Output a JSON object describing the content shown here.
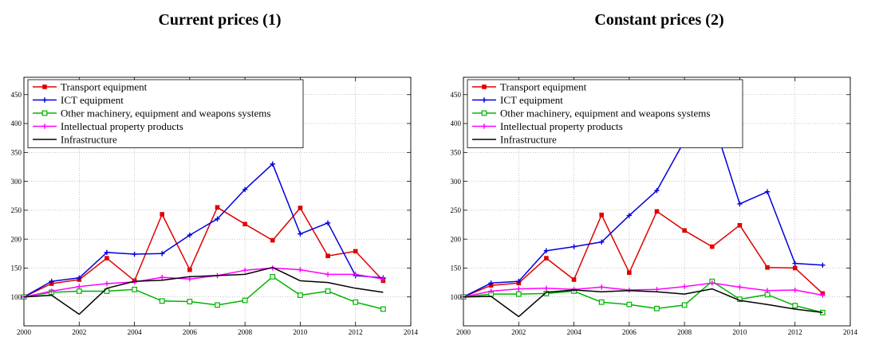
{
  "chart_data": [
    {
      "type": "line",
      "title": "Current prices (1)",
      "xlabel": "",
      "ylabel": "",
      "xlim": [
        2000,
        2014
      ],
      "ylim": [
        50,
        480
      ],
      "xticks": [
        2000,
        2002,
        2004,
        2006,
        2008,
        2010,
        2012,
        2014
      ],
      "yticks": [
        100,
        150,
        200,
        250,
        300,
        350,
        400,
        450
      ],
      "grid": true,
      "legend_position": "top-left",
      "x": [
        2000,
        2001,
        2002,
        2003,
        2004,
        2005,
        2006,
        2007,
        2008,
        2009,
        2010,
        2011,
        2012,
        2013
      ],
      "series": [
        {
          "name": "Transport equipment",
          "color": "#e00000",
          "marker": "square",
          "values": [
            100,
            123,
            130,
            167,
            128,
            243,
            147,
            255,
            226,
            198,
            254,
            171,
            179,
            128
          ]
        },
        {
          "name": "ICT equipment",
          "color": "#0000e0",
          "marker": "plus",
          "values": [
            100,
            127,
            133,
            177,
            174,
            175,
            207,
            235,
            286,
            330,
            209,
            228,
            137,
            133
          ]
        },
        {
          "name": "Other machinery, equipment and weapons systems",
          "color": "#00b400",
          "marker": "open-square",
          "values": [
            100,
            108,
            110,
            110,
            113,
            93,
            92,
            86,
            94,
            135,
            103,
            110,
            91,
            79
          ]
        },
        {
          "name": "Intellectual property products",
          "color": "#ff00ff",
          "marker": "plus",
          "values": [
            100,
            110,
            118,
            123,
            126,
            134,
            131,
            137,
            146,
            150,
            147,
            139,
            139,
            131
          ]
        },
        {
          "name": "Infrastructure",
          "color": "#000000",
          "marker": "none",
          "values": [
            100,
            103,
            70,
            115,
            127,
            129,
            135,
            137,
            139,
            151,
            128,
            125,
            115,
            108
          ]
        }
      ]
    },
    {
      "type": "line",
      "title": "Constant prices (2)",
      "xlabel": "",
      "ylabel": "",
      "xlim": [
        2000,
        2014
      ],
      "ylim": [
        50,
        480
      ],
      "xticks": [
        2000,
        2002,
        2004,
        2006,
        2008,
        2010,
        2012,
        2014
      ],
      "yticks": [
        100,
        150,
        200,
        250,
        300,
        350,
        400,
        450
      ],
      "grid": true,
      "legend_position": "top-left",
      "x": [
        2000,
        2001,
        2002,
        2003,
        2004,
        2005,
        2006,
        2007,
        2008,
        2009,
        2010,
        2011,
        2012,
        2013
      ],
      "series": [
        {
          "name": "Transport equipment",
          "color": "#e00000",
          "marker": "square",
          "values": [
            100,
            120,
            124,
            167,
            130,
            242,
            142,
            248,
            215,
            187,
            224,
            151,
            150,
            106
          ]
        },
        {
          "name": "ICT equipment",
          "color": "#0000e0",
          "marker": "plus",
          "values": [
            100,
            124,
            127,
            180,
            187,
            195,
            241,
            284,
            370,
            411,
            261,
            282,
            158,
            155
          ]
        },
        {
          "name": "Other machinery, equipment and weapons systems",
          "color": "#00b400",
          "marker": "open-square",
          "values": [
            100,
            105,
            105,
            106,
            110,
            91,
            87,
            80,
            86,
            127,
            96,
            104,
            85,
            73
          ]
        },
        {
          "name": "Intellectual property products",
          "color": "#ff00ff",
          "marker": "plus",
          "values": [
            100,
            110,
            114,
            115,
            113,
            117,
            112,
            113,
            118,
            124,
            117,
            111,
            112,
            103
          ]
        },
        {
          "name": "Infrastructure",
          "color": "#000000",
          "marker": "none",
          "values": [
            100,
            101,
            66,
            108,
            112,
            109,
            111,
            109,
            105,
            114,
            94,
            87,
            79,
            73
          ]
        }
      ]
    }
  ]
}
